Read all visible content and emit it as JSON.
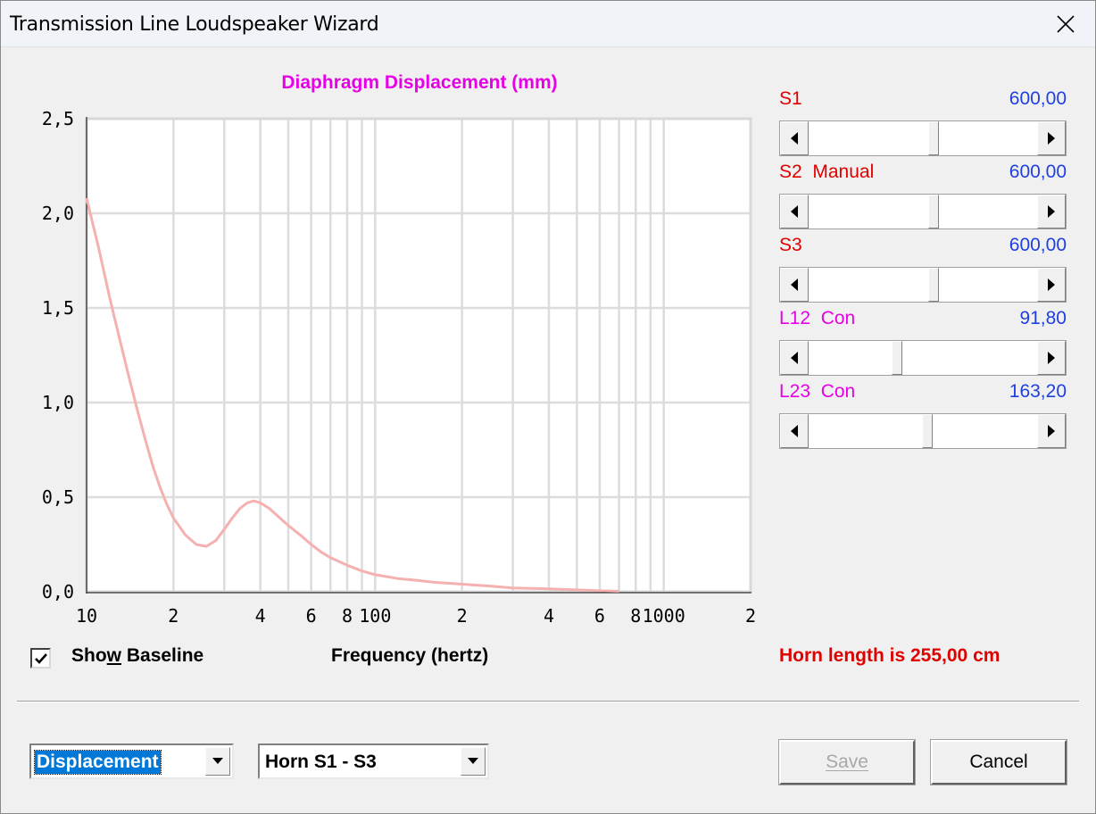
{
  "window": {
    "title": "Transmission Line Loudspeaker Wizard"
  },
  "colors": {
    "chart_title": "#e600e6",
    "curve": "#f5b0b0",
    "grid": "#dcdcdc",
    "red_label": "#e00000",
    "magenta_label": "#e600e6",
    "value_blue": "#1f3fe0"
  },
  "chart_data": {
    "type": "line",
    "title": "Diaphragm Displacement (mm)",
    "xlabel": "Frequency (hertz)",
    "ylabel": "",
    "x_scale": "log",
    "xlim": [
      10,
      2000
    ],
    "ylim": [
      0,
      2.5
    ],
    "y_ticks": [
      "0,0",
      "0,5",
      "1,0",
      "1,5",
      "2,0",
      "2,5"
    ],
    "x_ticks": [
      {
        "value": 10,
        "label": "10"
      },
      {
        "value": 20,
        "label": "2"
      },
      {
        "value": 40,
        "label": "4"
      },
      {
        "value": 60,
        "label": "6"
      },
      {
        "value": 80,
        "label": "8"
      },
      {
        "value": 100,
        "label": "100"
      },
      {
        "value": 200,
        "label": "2"
      },
      {
        "value": 400,
        "label": "4"
      },
      {
        "value": 600,
        "label": "6"
      },
      {
        "value": 800,
        "label": "8"
      },
      {
        "value": 1000,
        "label": "1000"
      },
      {
        "value": 2000,
        "label": "2"
      }
    ],
    "grid": true,
    "series": [
      {
        "x": [
          10,
          11,
          12,
          13,
          14,
          15,
          16,
          17,
          18,
          19,
          20,
          22,
          24,
          26,
          28,
          30,
          32,
          34,
          36,
          38,
          40,
          43,
          46,
          50,
          55,
          60,
          65,
          70,
          80,
          90,
          100,
          120,
          140,
          160,
          200,
          250,
          300,
          400,
          500,
          600,
          700
        ],
        "y": [
          2.08,
          1.82,
          1.56,
          1.34,
          1.14,
          0.96,
          0.8,
          0.66,
          0.55,
          0.46,
          0.39,
          0.3,
          0.25,
          0.24,
          0.27,
          0.33,
          0.39,
          0.44,
          0.47,
          0.48,
          0.47,
          0.44,
          0.4,
          0.35,
          0.3,
          0.25,
          0.21,
          0.18,
          0.14,
          0.11,
          0.09,
          0.07,
          0.06,
          0.05,
          0.04,
          0.03,
          0.02,
          0.015,
          0.01,
          0.005,
          0.003
        ]
      }
    ]
  },
  "params": [
    {
      "name": "S1",
      "mode": "",
      "value": "600,00",
      "color": "#e00000",
      "position": 0.55
    },
    {
      "name": "S2",
      "mode": "Manual",
      "value": "600,00",
      "color": "#e00000",
      "position": 0.55
    },
    {
      "name": "S3",
      "mode": "",
      "value": "600,00",
      "color": "#e00000",
      "position": 0.55
    },
    {
      "name": "L12",
      "mode": "Con",
      "value": "91,80",
      "color": "#e600e6",
      "position": 0.38
    },
    {
      "name": "L23",
      "mode": "Con",
      "value": "163,20",
      "color": "#e600e6",
      "position": 0.52
    }
  ],
  "baseline": {
    "label": "Show Baseline",
    "checked": true
  },
  "horn_length": "Horn length is 255,00 cm",
  "combos": {
    "view": "Displacement",
    "horn": "Horn S1 - S3"
  },
  "buttons": {
    "save": "Save",
    "cancel": "Cancel"
  }
}
